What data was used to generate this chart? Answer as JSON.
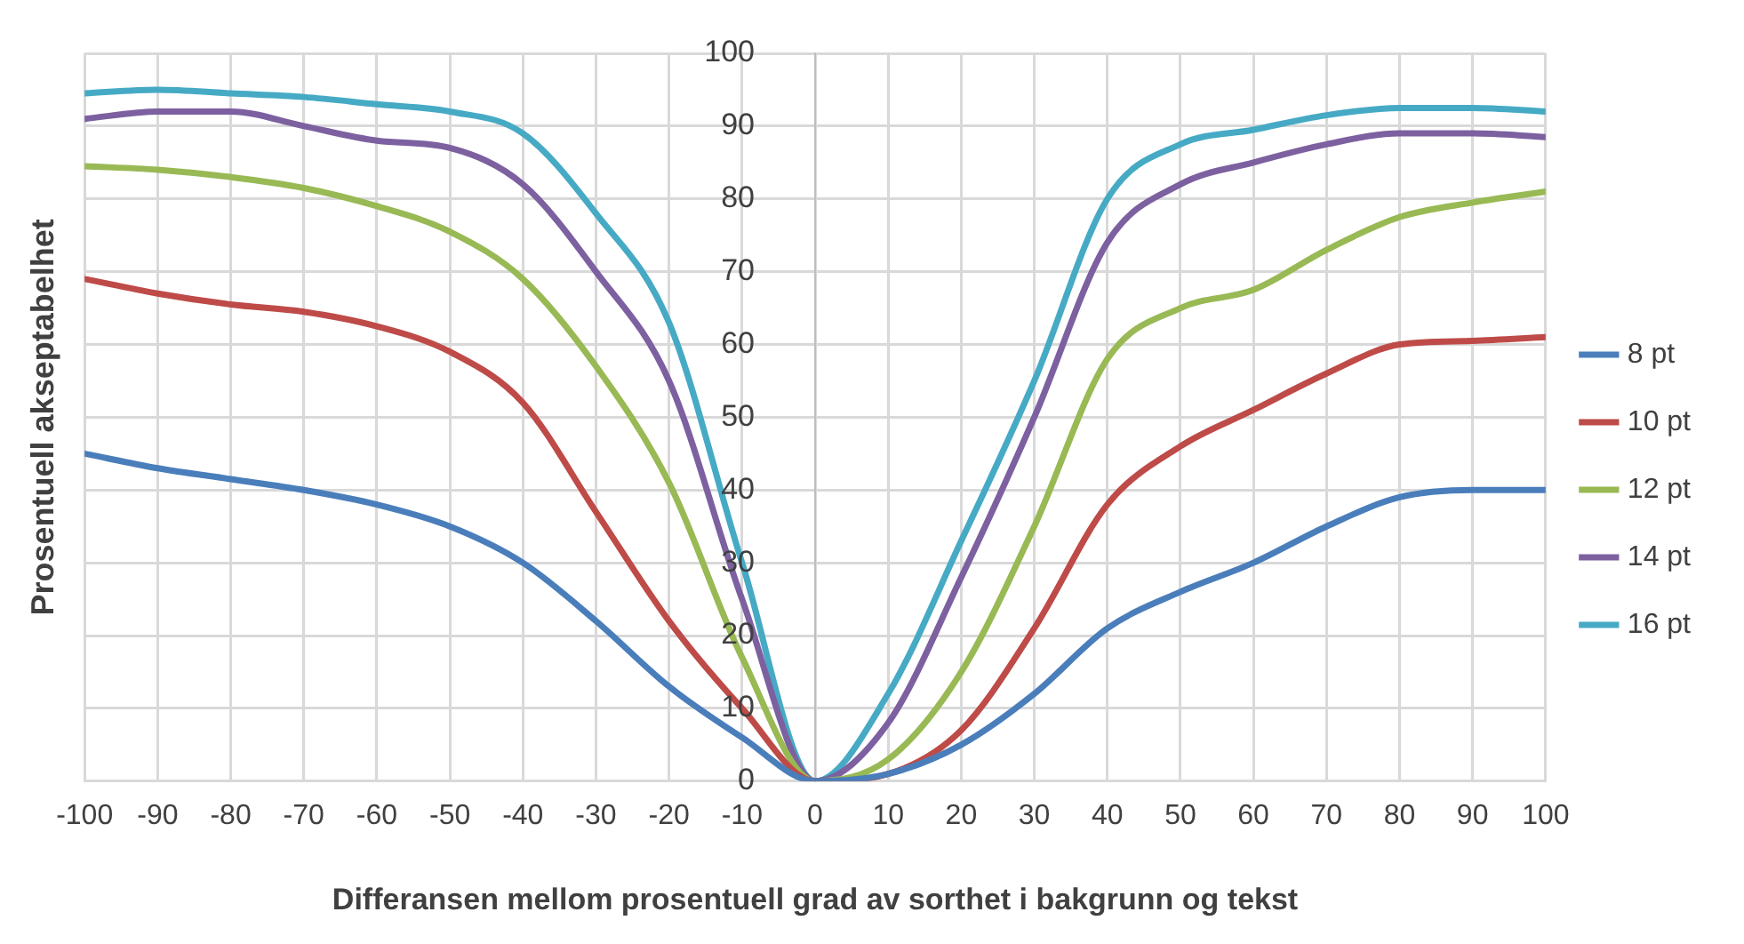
{
  "chart_data": {
    "type": "line",
    "xlabel": "Differansen mellom prosentuell grad av sorthet i bakgrunn og tekst",
    "ylabel": "Prosentuell akseptabelhet",
    "x": [
      -100,
      -90,
      -80,
      -70,
      -60,
      -50,
      -40,
      -30,
      -20,
      -10,
      0,
      10,
      20,
      30,
      40,
      50,
      60,
      70,
      80,
      90,
      100
    ],
    "xlim": [
      -100,
      100
    ],
    "xticks": [
      -100,
      -90,
      -80,
      -70,
      -60,
      -50,
      -40,
      -30,
      -20,
      -10,
      0,
      10,
      20,
      30,
      40,
      50,
      60,
      70,
      80,
      90,
      100
    ],
    "ylim": [
      0,
      100
    ],
    "yticks": [
      0,
      10,
      20,
      30,
      40,
      50,
      60,
      70,
      80,
      90,
      100
    ],
    "grid": true,
    "legend": "right",
    "marker": "none",
    "line_style": "solid",
    "series": [
      {
        "name": "8 pt",
        "color": "#4a7ebb",
        "values": [
          45,
          43,
          41.5,
          40,
          38,
          35,
          30,
          22,
          13,
          6,
          0,
          1,
          5,
          12,
          21,
          26,
          30,
          35,
          39,
          40,
          40
        ]
      },
      {
        "name": "10 pt",
        "color": "#be4b48",
        "values": [
          69,
          67,
          65.5,
          64.5,
          62.5,
          59,
          52,
          37,
          22,
          10,
          0,
          1,
          7,
          21,
          38,
          46,
          51,
          56,
          60,
          60.5,
          61
        ]
      },
      {
        "name": "12 pt",
        "color": "#98b954",
        "values": [
          84.5,
          84,
          83,
          81.5,
          79,
          75.5,
          69,
          57,
          41,
          17,
          0,
          3,
          15,
          35,
          58,
          65,
          67.5,
          73,
          77.5,
          79.5,
          81
        ]
      },
      {
        "name": "14 pt",
        "color": "#7d60a0",
        "values": [
          91,
          92,
          92,
          90,
          88,
          87,
          82,
          70,
          55,
          25,
          0,
          8,
          28,
          50,
          74,
          82,
          85,
          87.5,
          89,
          89,
          88.5
        ]
      },
      {
        "name": "16 pt",
        "color": "#46aac5",
        "values": [
          94.5,
          95,
          94.5,
          94,
          93,
          92,
          89,
          78,
          63,
          30,
          0,
          12,
          33,
          55,
          80,
          87.5,
          89.5,
          91.5,
          92.5,
          92.5,
          92
        ]
      }
    ]
  }
}
